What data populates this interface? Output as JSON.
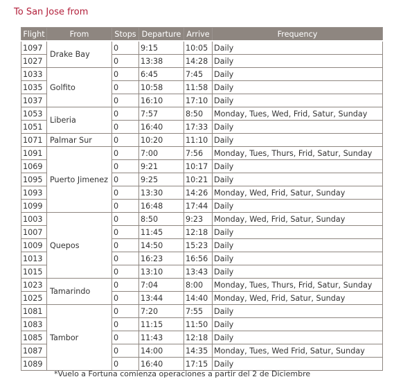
{
  "title": "To San Jose from",
  "columns": [
    "Flight",
    "From",
    "Stops",
    "Departure",
    "Arrive",
    "Frequency"
  ],
  "groups": [
    {
      "from": "Drake Bay",
      "flights": [
        {
          "flight": "1097",
          "stops": "0",
          "departure": "9:15",
          "arrive": "10:05",
          "frequency": "Daily"
        },
        {
          "flight": "1027",
          "stops": "0",
          "departure": "13:38",
          "arrive": "14:28",
          "frequency": "Daily"
        }
      ]
    },
    {
      "from": "Golfito",
      "flights": [
        {
          "flight": "1033",
          "stops": "0",
          "departure": "6:45",
          "arrive": "7:45",
          "frequency": "Daily"
        },
        {
          "flight": "1035",
          "stops": "0",
          "departure": "10:58",
          "arrive": "11:58",
          "frequency": "Daily"
        },
        {
          "flight": "1037",
          "stops": "0",
          "departure": "16:10",
          "arrive": "17:10",
          "frequency": "Daily"
        }
      ]
    },
    {
      "from": "Liberia",
      "flights": [
        {
          "flight": "1053",
          "stops": "0",
          "departure": "7:57",
          "arrive": "8:50",
          "frequency": "Monday, Tues, Wed, Frid, Satur, Sunday"
        },
        {
          "flight": "1051",
          "stops": "0",
          "departure": "16:40",
          "arrive": "17:33",
          "frequency": "Daily"
        }
      ]
    },
    {
      "from": "Palmar Sur",
      "flights": [
        {
          "flight": "1071",
          "stops": "0",
          "departure": "10:20",
          "arrive": "11:10",
          "frequency": "Daily"
        }
      ]
    },
    {
      "from": "Puerto Jimenez",
      "flights": [
        {
          "flight": "1091",
          "stops": "0",
          "departure": "7:00",
          "arrive": "7:56",
          "frequency": "Monday, Tues, Thurs, Frid, Satur, Sunday"
        },
        {
          "flight": "1069",
          "stops": "0",
          "departure": "9:21",
          "arrive": "10:17",
          "frequency": "Daily"
        },
        {
          "flight": "1095",
          "stops": "0",
          "departure": "9:25",
          "arrive": "10:21",
          "frequency": "Daily"
        },
        {
          "flight": "1093",
          "stops": "0",
          "departure": "13:30",
          "arrive": "14:26",
          "frequency": "Monday, Wed, Frid, Satur, Sunday"
        },
        {
          "flight": "1099",
          "stops": "0",
          "departure": "16:48",
          "arrive": "17:44",
          "frequency": "Daily"
        }
      ]
    },
    {
      "from": "Quepos",
      "flights": [
        {
          "flight": "1003",
          "stops": "0",
          "departure": "8:50",
          "arrive": "9:23",
          "frequency": "Monday, Wed, Frid, Satur, Sunday"
        },
        {
          "flight": "1007",
          "stops": "0",
          "departure": "11:45",
          "arrive": "12:18",
          "frequency": "Daily"
        },
        {
          "flight": "1009",
          "stops": "0",
          "departure": "14:50",
          "arrive": "15:23",
          "frequency": "Daily"
        },
        {
          "flight": "1013",
          "stops": "0",
          "departure": "16:23",
          "arrive": "16:56",
          "frequency": "Daily"
        },
        {
          "flight": "1015",
          "stops": "0",
          "departure": "13:10",
          "arrive": "13:43",
          "frequency": "Daily"
        }
      ]
    },
    {
      "from": "Tamarindo",
      "flights": [
        {
          "flight": "1023",
          "stops": "0",
          "departure": "7:04",
          "arrive": "8:00",
          "frequency": "Monday, Tues, Thurs, Frid, Satur, Sunday"
        },
        {
          "flight": "1025",
          "stops": "0",
          "departure": "13:44",
          "arrive": "14:40",
          "frequency": "Monday, Wed, Frid, Satur, Sunday"
        }
      ]
    },
    {
      "from": "Tambor",
      "flights": [
        {
          "flight": "1081",
          "stops": "0",
          "departure": "7:20",
          "arrive": "7:55",
          "frequency": "Daily"
        },
        {
          "flight": "1083",
          "stops": "0",
          "departure": "11:15",
          "arrive": "11:50",
          "frequency": "Daily"
        },
        {
          "flight": "1085",
          "stops": "0",
          "departure": "11:43",
          "arrive": "12:18",
          "frequency": "Daily"
        },
        {
          "flight": "1087",
          "stops": "0",
          "departure": "14:00",
          "arrive": "14:35",
          "frequency": "Monday, Tues, Wed Frid, Satur, Sunday"
        },
        {
          "flight": "1089",
          "stops": "0",
          "departure": "16:40",
          "arrive": "17:15",
          "frequency": "Daily"
        }
      ]
    }
  ],
  "footnote": "*Vuelo a Fortuna comienza operaciones a partir del 2 de Diciembre",
  "colors": {
    "title": "#b21f3a",
    "header_bg": "#8e8680",
    "header_text": "#ffffff",
    "border": "#8e8680",
    "text": "#333333"
  }
}
